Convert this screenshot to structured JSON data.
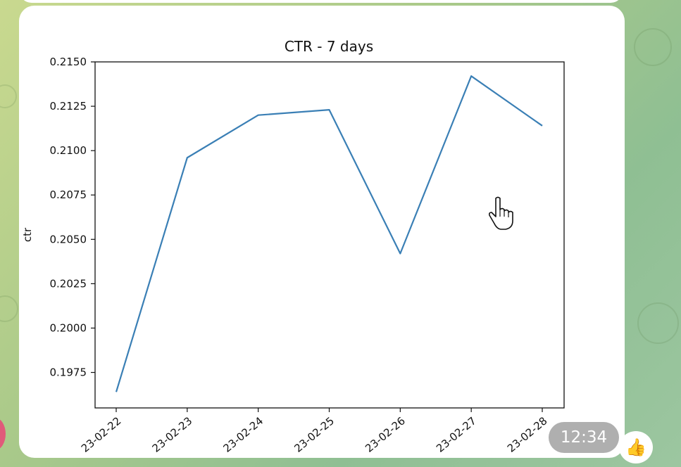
{
  "message": {
    "time": "12:34",
    "reaction_icon": "thumbs-up-icon",
    "reaction_glyph": "👍"
  },
  "chart_data": {
    "type": "line",
    "title": "CTR - 7 days",
    "xlabel": "",
    "ylabel": "ctr",
    "categories": [
      "2023-02-22",
      "2023-02-23",
      "2023-02-24",
      "2023-02-25",
      "2023-02-26",
      "2023-02-27",
      "2023-02-28"
    ],
    "x_tick_labels": [
      "23-02-22",
      "23-02-23",
      "23-02-24",
      "23-02-25",
      "23-02-26",
      "23-02-27",
      "23-02-28"
    ],
    "y_ticks": [
      "0.1975",
      "0.2000",
      "0.2025",
      "0.2050",
      "0.2075",
      "0.2100",
      "0.2125",
      "0.2150"
    ],
    "series": [
      {
        "values": [
          0.1964,
          0.2096,
          0.212,
          0.2123,
          0.2042,
          0.2142,
          0.2114
        ],
        "color": "#3a7fb5"
      }
    ],
    "ylim": [
      0.1955,
      0.215
    ],
    "grid": false,
    "legend": "none"
  }
}
